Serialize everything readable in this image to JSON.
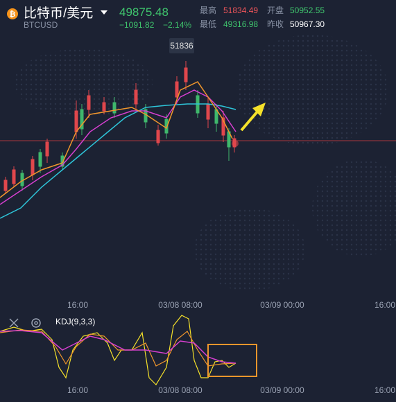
{
  "header": {
    "name": "比特币/美元",
    "symbol": "BTCUSD",
    "price": "49875.48",
    "change": "−1091.82",
    "change_pct": "−2.14%",
    "high_label": "最高",
    "high": "51834.49",
    "open_label": "开盘",
    "open": "50952.55",
    "low_label": "最低",
    "low": "49316.98",
    "prev_close_label": "昨收",
    "prev_close": "50967.30"
  },
  "main_chart": {
    "peak_label": "51836",
    "time_labels": [
      "16:00",
      "03/08 08:00",
      "03/09 00:00",
      "16:00"
    ]
  },
  "indicator": {
    "name": "KDJ(9,3,3)",
    "time_labels": [
      "16:00",
      "03/08 08:00",
      "03/09 00:00",
      "16:00"
    ]
  }
}
